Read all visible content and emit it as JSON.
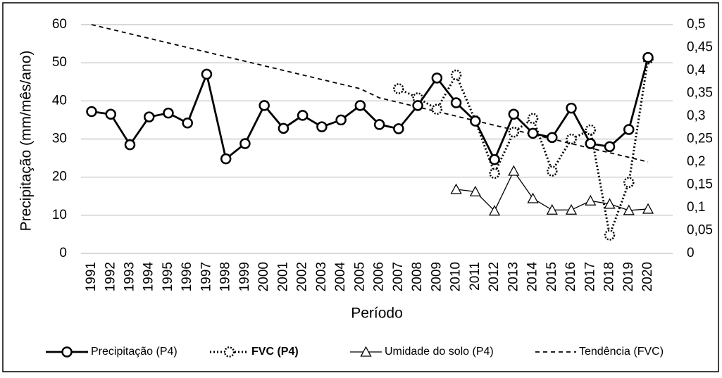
{
  "chart_data": {
    "type": "line",
    "y_label": "Precipitação (mm/mês/ano)",
    "x_label": "Período",
    "categories": [
      "1991",
      "1992",
      "1993",
      "1994",
      "1995",
      "1996",
      "1997",
      "1998",
      "1999",
      "2000",
      "2001",
      "2002",
      "2003",
      "2004",
      "2005",
      "2006",
      "2007",
      "2008",
      "2009",
      "2010",
      "2011",
      "2012",
      "2013",
      "2014",
      "2015",
      "2016",
      "2017",
      "2018",
      "2019",
      "2020"
    ],
    "ylim": [
      0,
      60
    ],
    "yticks": [
      0,
      10,
      20,
      30,
      40,
      50,
      60
    ],
    "y2lim": [
      0,
      0.5
    ],
    "y2ticks": [
      0,
      {
        "value": 0.05,
        "label": "0,05"
      },
      {
        "value": 0.1,
        "label": "0,1"
      },
      {
        "value": 0.15,
        "label": "0,15"
      },
      {
        "value": 0.2,
        "label": "0,2"
      },
      {
        "value": 0.25,
        "label": "0,25"
      },
      {
        "value": 0.3,
        "label": "0,3"
      },
      {
        "value": 0.35,
        "label": "0,35"
      },
      {
        "value": 0.4,
        "label": "0,4"
      },
      {
        "value": 0.45,
        "label": "0,45"
      },
      {
        "value": 0.5,
        "label": "0,5"
      }
    ],
    "grid": true,
    "series": [
      {
        "name": "Precipitação (P4)",
        "color": "#000000",
        "style": "solid-circle",
        "values": [
          37.2,
          36.5,
          28.5,
          35.8,
          36.8,
          34.2,
          47,
          24.8,
          28.8,
          38.8,
          32.8,
          36.2,
          33.2,
          35,
          38.8,
          33.8,
          32.7,
          38.8,
          46,
          39.5,
          34.7,
          24.6,
          36.5,
          31.5,
          30.4,
          38.1,
          28.8,
          28,
          32.5,
          51.4
        ]
      },
      {
        "name": "FVC (P4)",
        "color": "#000000",
        "style": "dotted-circle",
        "axis": "y2",
        "values": [
          null,
          null,
          null,
          null,
          null,
          null,
          null,
          null,
          null,
          null,
          null,
          null,
          null,
          null,
          null,
          null,
          0.36,
          0.34,
          0.315,
          0.39,
          0.29,
          0.175,
          0.265,
          0.295,
          0.18,
          0.25,
          0.27,
          0.04,
          0.155,
          0.425
        ]
      },
      {
        "name": "Umidade do solo (P4)",
        "color": "#000000",
        "style": "thin-triangle",
        "axis": "y2",
        "values": [
          null,
          null,
          null,
          null,
          null,
          null,
          null,
          null,
          null,
          null,
          null,
          null,
          null,
          null,
          null,
          null,
          null,
          null,
          null,
          0.14,
          0.135,
          0.093,
          0.18,
          0.12,
          0.095,
          0.095,
          0.115,
          0.108,
          0.094,
          0.097
        ]
      },
      {
        "name": "Tendência (FVC)",
        "color": "#000000",
        "style": "dashed",
        "axis": "y2",
        "values": [
          0.5,
          0.49,
          0.48,
          0.47,
          0.46,
          0.45,
          0.44,
          0.43,
          0.42,
          0.41,
          0.4,
          0.39,
          0.38,
          0.37,
          0.36,
          0.34,
          0.33,
          0.32,
          0.31,
          0.3,
          0.29,
          0.28,
          0.27,
          0.26,
          0.25,
          0.24,
          0.23,
          0.22,
          0.21,
          0.2
        ]
      }
    ]
  }
}
